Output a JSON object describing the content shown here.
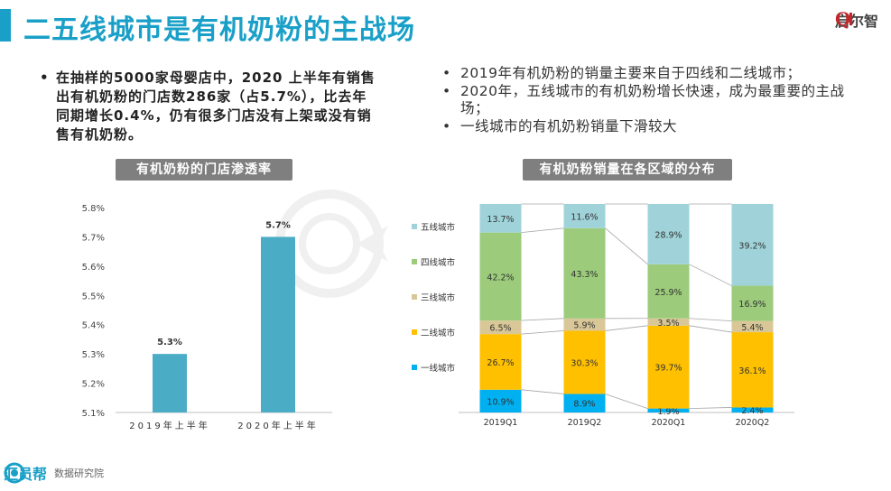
{
  "header": {
    "title": "二五线城市是有机奶粉的主战场",
    "logo_text": "启尔智"
  },
  "left_bullets": [
    "在抽样的5000家母婴店中，2020 上半年有销售出有机奶粉的门店数286家（占5.7%），比去年同期增长0.4%，仍有很多门店没有上架或没有销售有机奶粉。"
  ],
  "right_bullets": [
    "2019年有机奶粉的销量主要来自于四线和二线城市；",
    "2020年，五线城市的有机奶粉增长快速，成为最重要的主战场；",
    "一线城市的有机奶粉销量下滑较大"
  ],
  "colors": {
    "accent": "#1aa0c8",
    "bar1": "#4bacc6",
    "tier1": "#00b0f0",
    "tier2": "#ffc000",
    "tier3": "#d9c797",
    "tier4": "#9bcb7b",
    "tier5": "#9fd3d9"
  },
  "footer": {
    "brand": "汇员帮",
    "dept": "数据研究院"
  },
  "chart_data": [
    {
      "type": "bar",
      "title": "有机奶粉的门店渗透率",
      "categories": [
        "2019年上半年",
        "2020年上半年"
      ],
      "values": [
        5.3,
        5.7
      ],
      "value_labels": [
        "5.3%",
        "5.7%"
      ],
      "ylim": [
        5.1,
        5.8
      ],
      "y_ticks": [
        5.1,
        5.2,
        5.3,
        5.4,
        5.5,
        5.6,
        5.7,
        5.8
      ],
      "y_tick_labels": [
        "5.1%",
        "5.2%",
        "5.3%",
        "5.4%",
        "5.5%",
        "5.6%",
        "5.7%",
        "5.8%"
      ],
      "xlabel": "",
      "ylabel": ""
    },
    {
      "type": "bar",
      "stacked": true,
      "title": "有机奶粉销量在各区域的分布",
      "categories": [
        "2019Q1",
        "2019Q2",
        "2020Q1",
        "2020Q2"
      ],
      "series": [
        {
          "name": "一线城市",
          "values": [
            10.9,
            8.9,
            1.9,
            2.4
          ],
          "labels": [
            "10.9%",
            "8.9%",
            "1.9%",
            "2.4%"
          ]
        },
        {
          "name": "二线城市",
          "values": [
            26.7,
            30.3,
            39.7,
            36.1
          ],
          "labels": [
            "26.7%",
            "30.3%",
            "39.7%",
            "36.1%"
          ]
        },
        {
          "name": "三线城市",
          "values": [
            6.5,
            5.9,
            3.5,
            5.4
          ],
          "labels": [
            "6.5%",
            "5.9%",
            "3.5%",
            "5.4%"
          ]
        },
        {
          "name": "四线城市",
          "values": [
            42.2,
            43.3,
            25.9,
            16.9
          ],
          "labels": [
            "42.2%",
            "43.3%",
            "25.9%",
            "16.9%"
          ]
        },
        {
          "name": "五线城市",
          "values": [
            13.7,
            11.6,
            28.9,
            39.2
          ],
          "labels": [
            "13.7%",
            "11.6%",
            "28.9%",
            "39.2%"
          ]
        }
      ],
      "legend_order": [
        "五线城市",
        "四线城市",
        "三线城市",
        "二线城市",
        "一线城市"
      ],
      "legend_position": "left",
      "ylim": [
        0,
        100
      ]
    }
  ]
}
